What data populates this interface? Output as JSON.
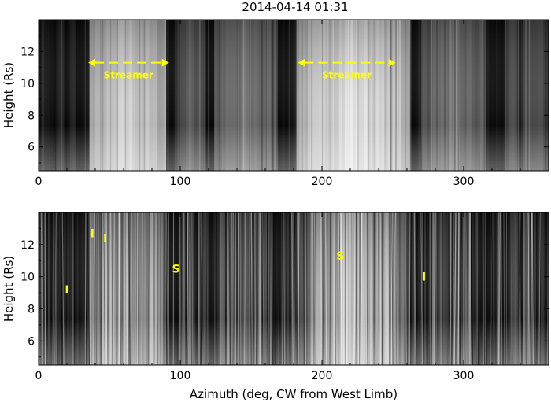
{
  "chart_data": [
    {
      "type": "heatmap",
      "title": "2014-04-14 01:31",
      "xlabel": "",
      "ylabel": "Height (Rs)",
      "xlim": [
        0,
        360
      ],
      "ylim": [
        4.5,
        14
      ],
      "x_ticks": [
        "0",
        "100",
        "200",
        "300"
      ],
      "y_ticks": [
        "6",
        "8",
        "10",
        "12"
      ],
      "colormap": "grayscale",
      "annotations": [
        {
          "label": "Streamer",
          "x_from": 35,
          "x_to": 92,
          "y": 11.3
        },
        {
          "label": "Streamer",
          "x_from": 183,
          "x_to": 252,
          "y": 11.3
        }
      ]
    },
    {
      "type": "heatmap",
      "xlabel": "Azimuth (deg, CW from West Limb)",
      "ylabel": "Height (Rs)",
      "xlim": [
        0,
        360
      ],
      "ylim": [
        4.5,
        14
      ],
      "x_ticks": [
        "0",
        "100",
        "200",
        "300"
      ],
      "y_ticks": [
        "6",
        "8",
        "10",
        "12"
      ],
      "colormap": "grayscale",
      "markers": [
        {
          "label": "I",
          "x": 20,
          "y": 9.2
        },
        {
          "label": "I",
          "x": 38,
          "y": 12.7
        },
        {
          "label": "I",
          "x": 47,
          "y": 12.4
        },
        {
          "label": "S",
          "x": 97,
          "y": 10.5
        },
        {
          "label": "S",
          "x": 213,
          "y": 11.3
        },
        {
          "label": "I",
          "x": 272,
          "y": 10.0
        }
      ]
    }
  ],
  "colors": {
    "annotation": "#ffff00",
    "axes": "#000000"
  }
}
